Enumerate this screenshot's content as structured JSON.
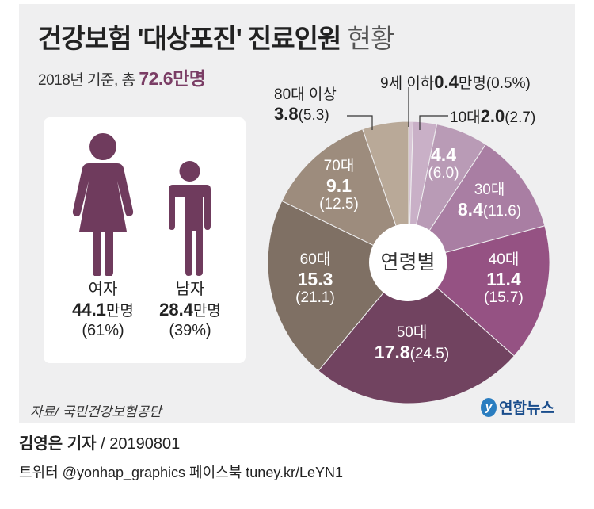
{
  "title": {
    "main": "건강보험 '대상포진' 진료인원",
    "light": "현황"
  },
  "subtitle": {
    "prefix": "2018년 기준, 총 ",
    "total": "72.6",
    "unit": "만명"
  },
  "gender": [
    {
      "label": "여자",
      "value": "44.1",
      "unit": "만명",
      "pct": "(61%)",
      "icon": "woman-icon"
    },
    {
      "label": "남자",
      "value": "28.4",
      "unit": "만명",
      "pct": "(39%)",
      "icon": "man-icon"
    }
  ],
  "figure_color": "#6f3b5d",
  "chart_data": {
    "type": "pie",
    "center_label": "연령별",
    "unit": "만명 (%)",
    "slices": [
      {
        "label": "9세 이하",
        "value": 0.4,
        "pct": 0.5,
        "value_text": "0.4",
        "unit": "만명",
        "pct_text": "(0.5%)",
        "color": "#d8c6d6"
      },
      {
        "label": "10대",
        "value": 2.0,
        "pct": 2.7,
        "value_text": "2.0",
        "pct_text": "(2.7)",
        "color": "#c9b0c7"
      },
      {
        "label": "",
        "value": 4.4,
        "pct": 6.0,
        "value_text": "4.4",
        "pct_text": "(6.0)",
        "color": "#b99bb6"
      },
      {
        "label": "30대",
        "value": 8.4,
        "pct": 11.6,
        "value_text": "8.4",
        "pct_text": "(11.6)",
        "color": "#a97ea3"
      },
      {
        "label": "40대",
        "value": 11.4,
        "pct": 15.7,
        "value_text": "11.4",
        "pct_text": "(15.7)",
        "color": "#955283"
      },
      {
        "label": "50대",
        "value": 17.8,
        "pct": 24.5,
        "value_text": "17.8",
        "pct_text": "(24.5)",
        "color": "#714360"
      },
      {
        "label": "60대",
        "value": 15.3,
        "pct": 21.1,
        "value_text": "15.3",
        "pct_text": "(21.1)",
        "color": "#7f7064"
      },
      {
        "label": "70대",
        "value": 9.1,
        "pct": 12.5,
        "value_text": "9.1",
        "pct_text": "(12.5)",
        "color": "#9d8c7d"
      },
      {
        "label": "80대 이상",
        "value": 3.8,
        "pct": 5.3,
        "value_text": "3.8",
        "pct_text": "(5.3)",
        "color": "#b9a998"
      }
    ]
  },
  "source": "자료/ 국민건강보험공단",
  "logo": {
    "mark": "y",
    "text": "연합뉴스"
  },
  "byline": {
    "name": "김영은 기자",
    "date": " / 20190801"
  },
  "social": "트위터 @yonhap_graphics  페이스북 tuney.kr/LeYN1"
}
